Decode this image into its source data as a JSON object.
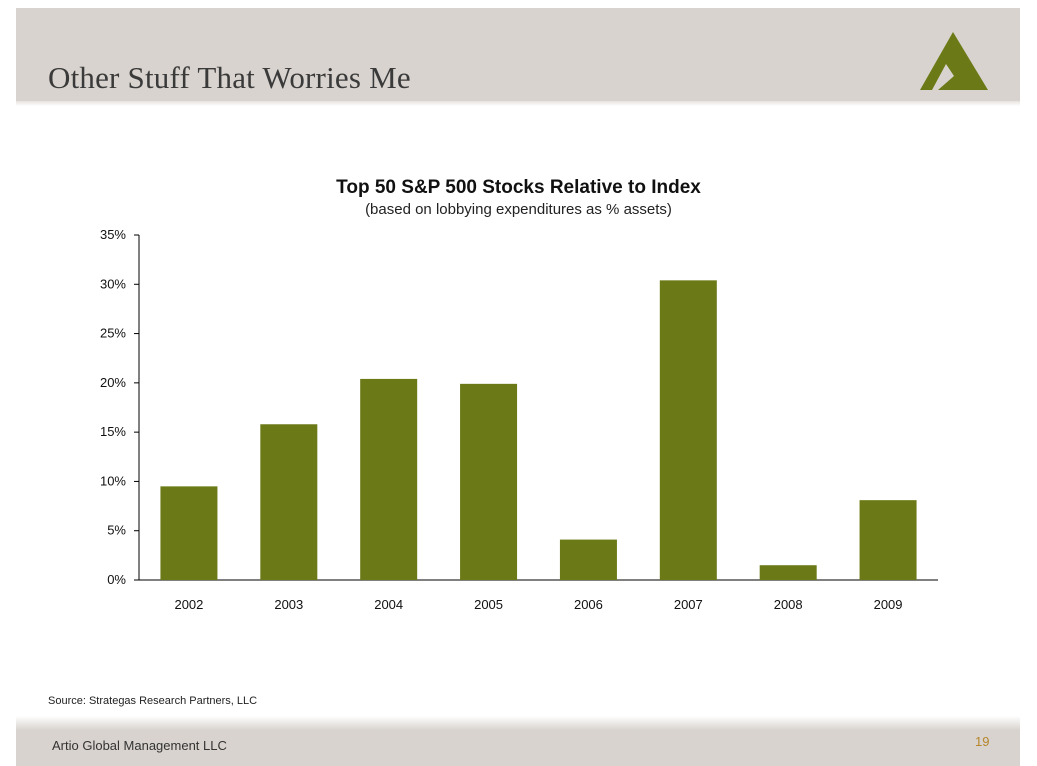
{
  "slide": {
    "title": "Other Stuff That Worries Me",
    "logo": "artio-triangle-logo",
    "source": "Source: Strategas Research Partners, LLC",
    "company": "Artio Global Management LLC",
    "page_number": "19",
    "accent_color": "#6b7a16",
    "header_color": "#d8d3ce"
  },
  "chart_data": {
    "type": "bar",
    "title": "Top 50 S&P 500 Stocks Relative to Index",
    "subtitle": "(based on lobbying expenditures as % assets)",
    "categories": [
      "2002",
      "2003",
      "2004",
      "2005",
      "2006",
      "2007",
      "2008",
      "2009"
    ],
    "values": [
      9.5,
      15.8,
      20.4,
      19.9,
      4.1,
      30.4,
      1.5,
      8.1
    ],
    "unit": "%",
    "ylim": [
      0,
      35
    ],
    "yticks": [
      0,
      5,
      10,
      15,
      20,
      25,
      30,
      35
    ],
    "ytick_labels": [
      "0%",
      "5%",
      "10%",
      "15%",
      "20%",
      "25%",
      "30%",
      "35%"
    ],
    "xlabel": "",
    "ylabel": "",
    "grid": false,
    "legend": false,
    "bar_color": "#6b7a16"
  }
}
